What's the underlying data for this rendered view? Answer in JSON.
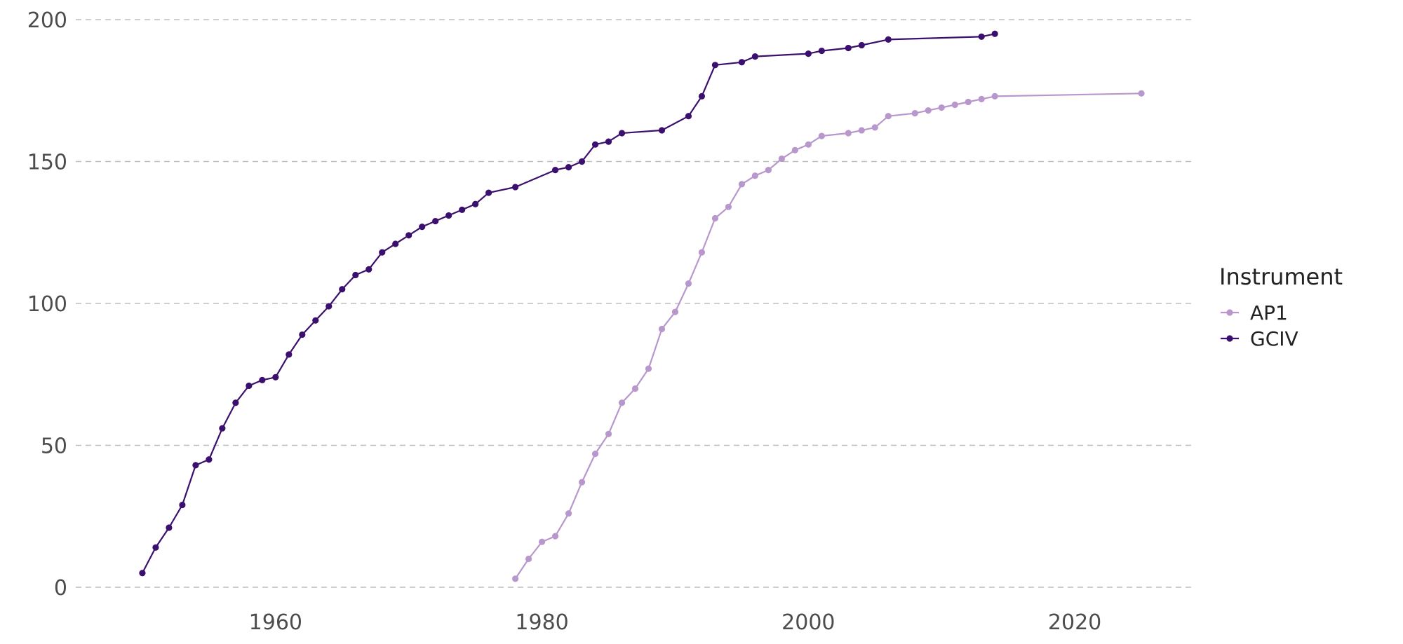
{
  "chart_data": {
    "type": "line",
    "title": "",
    "xlabel": "",
    "ylabel": "",
    "xlim": [
      1945,
      2029
    ],
    "ylim": [
      0,
      200
    ],
    "x_ticks": [
      "1960",
      "1980",
      "2000",
      "2020"
    ],
    "y_ticks": [
      "0",
      "50",
      "100",
      "150",
      "200"
    ],
    "grid": "horizontal dashed",
    "legend": {
      "title": "Instrument",
      "position": "right"
    },
    "series": [
      {
        "name": "AP1",
        "color": "#b897cc",
        "x": [
          1978,
          1979,
          1980,
          1981,
          1982,
          1983,
          1984,
          1985,
          1986,
          1987,
          1988,
          1989,
          1990,
          1991,
          1992,
          1993,
          1994,
          1995,
          1996,
          1997,
          1998,
          1999,
          2000,
          2001,
          2003,
          2004,
          2005,
          2006,
          2008,
          2009,
          2010,
          2011,
          2012,
          2013,
          2014,
          2025
        ],
        "y": [
          3,
          10,
          16,
          18,
          26,
          37,
          47,
          54,
          65,
          70,
          77,
          91,
          97,
          107,
          118,
          130,
          134,
          142,
          145,
          147,
          151,
          154,
          156,
          159,
          160,
          161,
          162,
          166,
          167,
          168,
          169,
          170,
          171,
          172,
          173,
          174
        ]
      },
      {
        "name": "GCIV",
        "color": "#3b0f6e",
        "x": [
          1950,
          1951,
          1952,
          1953,
          1954,
          1955,
          1956,
          1957,
          1958,
          1959,
          1960,
          1961,
          1962,
          1963,
          1964,
          1965,
          1966,
          1967,
          1968,
          1969,
          1970,
          1971,
          1972,
          1973,
          1974,
          1975,
          1976,
          1978,
          1981,
          1982,
          1983,
          1984,
          1985,
          1986,
          1989,
          1991,
          1992,
          1993,
          1995,
          1996,
          2000,
          2001,
          2003,
          2004,
          2006,
          2013,
          2014
        ],
        "y": [
          5,
          14,
          21,
          29,
          43,
          45,
          56,
          65,
          71,
          73,
          74,
          82,
          89,
          94,
          99,
          105,
          110,
          112,
          118,
          121,
          124,
          127,
          129,
          131,
          133,
          135,
          139,
          141,
          147,
          148,
          150,
          156,
          157,
          160,
          161,
          166,
          173,
          184,
          185,
          187,
          188,
          189,
          190,
          191,
          193,
          194,
          195
        ]
      }
    ]
  }
}
